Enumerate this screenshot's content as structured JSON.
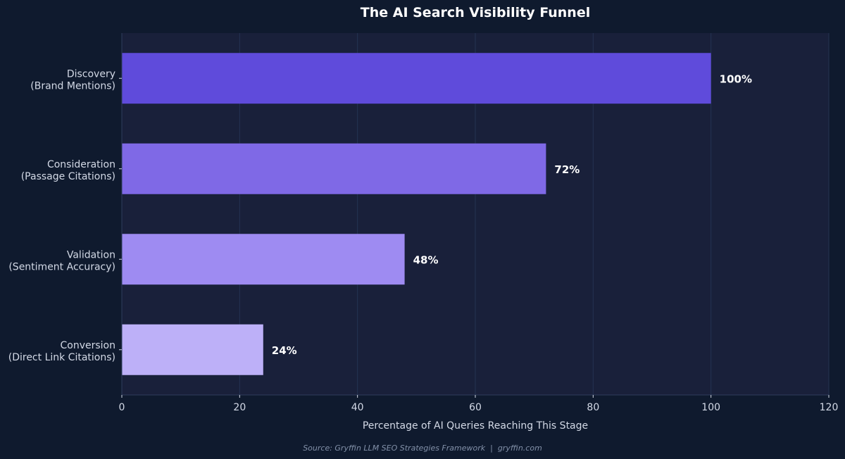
{
  "chart_data": {
    "type": "bar",
    "orientation": "horizontal",
    "title": "The AI Search Visibility Funnel",
    "xlabel": "Percentage of AI Queries Reaching This Stage",
    "ylabel": "",
    "xlim": [
      0,
      120
    ],
    "xticks": [
      0,
      20,
      40,
      60,
      80,
      100,
      120
    ],
    "grid": true,
    "categories": [
      [
        "Discovery",
        "(Brand Mentions)"
      ],
      [
        "Consideration",
        "(Passage Citations)"
      ],
      [
        "Validation",
        "(Sentiment Accuracy)"
      ],
      [
        "Conversion",
        "(Direct Link Citations)"
      ]
    ],
    "values": [
      100,
      72,
      48,
      24
    ],
    "value_labels": [
      "100%",
      "72%",
      "48%",
      "24%"
    ],
    "colors": [
      "#5f4bdb",
      "#7f69e6",
      "#9e8bf2",
      "#bdb0f8"
    ],
    "background": "#0f1a2e",
    "plot_background": "#19203a",
    "source": "Source: Gryffin LLM SEO Strategies Framework  |  gryffin.com"
  }
}
